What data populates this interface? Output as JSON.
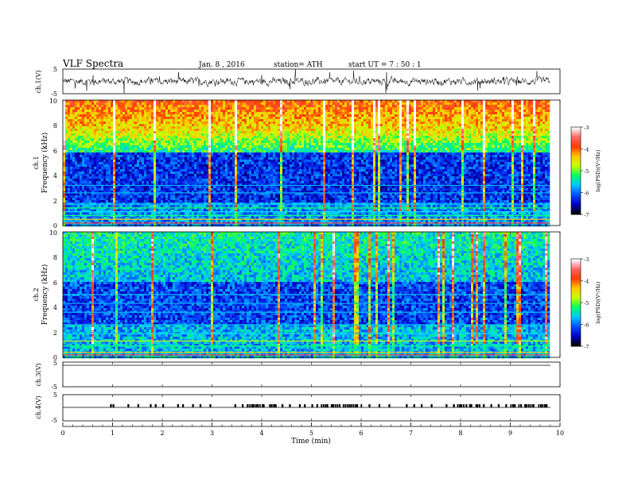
{
  "header": {
    "title": "VLF  Spectra",
    "date": "Jan.  8  ,  2016",
    "station": "station= ATH",
    "start": "start  UT  =    7  : 50 :  1"
  },
  "panels": {
    "ch1v": {
      "label": "ch.1(V)",
      "ticks": [
        "5",
        "-5"
      ]
    },
    "spec1": {
      "channel_label": "ch.1",
      "ylabel": "Frequency  (kHz)",
      "ticks": [
        "10",
        "8",
        "6",
        "4",
        "2",
        "0"
      ]
    },
    "spec2": {
      "channel_label": "ch.2",
      "ylabel": "Frequency  (kHz)",
      "ticks": [
        "10",
        "8",
        "6",
        "4",
        "2",
        "0"
      ]
    },
    "ch3v": {
      "label": "ch.3(V)",
      "ticks": [
        "5",
        "-5"
      ]
    },
    "ch4v": {
      "label": "ch.4(V)",
      "ticks": [
        "5",
        "-5"
      ]
    }
  },
  "colorbar": {
    "label": "log(PSD)(V²/Hz)",
    "ticks": [
      "-3",
      "-4",
      "-5",
      "-6",
      "-7"
    ],
    "colors": [
      "#000000",
      "#0000c8",
      "#0050ff",
      "#00c8ff",
      "#00ff64",
      "#c8ff00",
      "#ffc800",
      "#ff3c00",
      "#ff6464",
      "#ffffff"
    ]
  },
  "chart_data": {
    "type": "heatmap",
    "x_axis": {
      "label": "Time  (min)",
      "range": [
        0,
        10
      ],
      "ticks": [
        "0",
        "1",
        "2",
        "3",
        "4",
        "5",
        "6",
        "7",
        "8",
        "9",
        "10"
      ]
    },
    "y_axis_frequency": {
      "unit": "kHz",
      "range": [
        0,
        10
      ]
    },
    "color_scale": {
      "range": [
        -7,
        -3
      ],
      "log": true
    },
    "data_end_min": 9.8,
    "waveform_range_V": [
      -5,
      5
    ],
    "ch4_pulse_times_min": [
      0.95,
      1.0,
      1.3,
      1.5,
      1.75,
      1.85,
      2.0,
      2.3,
      2.4,
      2.6,
      2.75,
      2.95,
      3.45,
      3.6,
      3.7,
      3.8,
      3.9,
      4.0,
      4.15,
      4.25,
      4.4,
      4.55,
      4.75,
      4.85,
      5.0,
      5.1,
      5.3,
      5.4,
      5.55,
      5.75,
      5.9,
      6.15,
      6.35,
      6.55,
      6.9,
      7.05,
      7.2,
      7.4,
      7.7,
      7.85,
      8.0,
      8.1,
      8.2,
      8.3,
      8.45,
      8.6,
      8.75,
      8.9,
      9.05,
      9.2,
      9.3,
      9.45,
      9.6,
      9.7
    ],
    "ch4_dense_intervals_min": [
      [
        3.75,
        4.3
      ],
      [
        5.15,
        6.05
      ],
      [
        7.85,
        8.45
      ],
      [
        9.0,
        9.75
      ]
    ]
  }
}
